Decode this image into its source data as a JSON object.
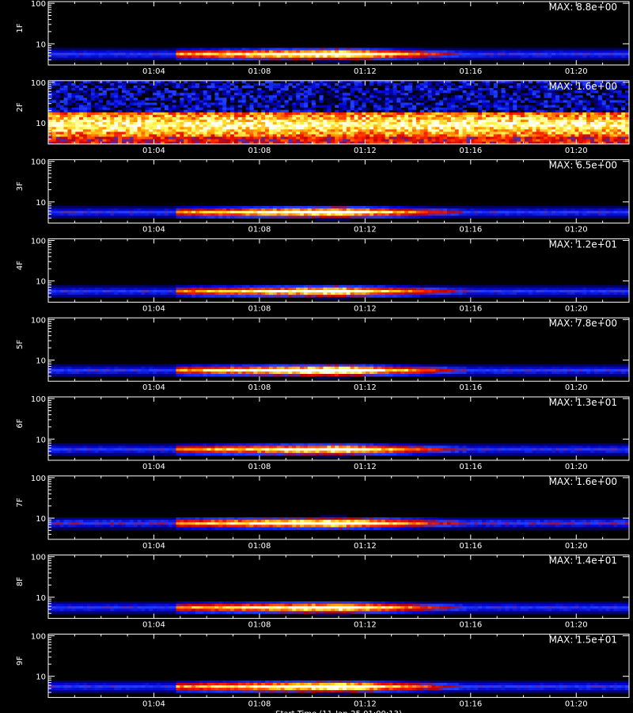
{
  "chart_data": {
    "type": "heatmap",
    "colormap": [
      "#000000",
      "#0000c8",
      "#2040ff",
      "#c00000",
      "#ff2000",
      "#ffa000",
      "#ffff60",
      "#ffffff"
    ],
    "x_ticks": [
      "01:04",
      "01:08",
      "01:12",
      "01:16",
      "01:20"
    ],
    "x_tick_minutes": [
      4,
      8,
      12,
      16,
      20
    ],
    "x_range_minutes": [
      0.0,
      22.0
    ],
    "y_ticks": [
      "100",
      "10"
    ],
    "y_tick_values": [
      100,
      10
    ],
    "y_range": [
      3,
      110
    ],
    "y_scale": "log",
    "x_axis_title": "Start Time (11-Jan-25 01:00:13)",
    "panels": [
      {
        "label": "1F",
        "max_text": "MAX: 8.8e+00",
        "max": 8.8,
        "background": 0.3,
        "event_peak": 1.0,
        "band_center": 5.5
      },
      {
        "label": "2F",
        "max_text": "MAX: 1.6e+00",
        "max": 1.6,
        "background": 1.05,
        "event_peak": 0.15,
        "band_center": 9.0
      },
      {
        "label": "3F",
        "max_text": "MAX: 6.5e+00",
        "max": 6.5,
        "background": 0.3,
        "event_peak": 0.95,
        "band_center": 5.5
      },
      {
        "label": "4F",
        "max_text": "MAX: 1.2e+01",
        "max": 12.0,
        "background": 0.3,
        "event_peak": 0.9,
        "band_center": 5.5
      },
      {
        "label": "5F",
        "max_text": "MAX: 7.8e+00",
        "max": 7.8,
        "background": 0.3,
        "event_peak": 1.05,
        "band_center": 5.5
      },
      {
        "label": "6F",
        "max_text": "MAX: 1.3e+01",
        "max": 13.0,
        "background": 0.3,
        "event_peak": 0.9,
        "band_center": 5.5
      },
      {
        "label": "7F",
        "max_text": "MAX: 1.6e+00",
        "max": 1.6,
        "background": 0.35,
        "event_peak": 0.9,
        "band_center": 7.5
      },
      {
        "label": "8F",
        "max_text": "MAX: 1.4e+01",
        "max": 14.0,
        "background": 0.3,
        "event_peak": 0.9,
        "band_center": 5.5
      },
      {
        "label": "9F",
        "max_text": "MAX: 1.5e+01",
        "max": 15.0,
        "background": 0.3,
        "event_peak": 1.0,
        "band_center": 5.5
      }
    ],
    "event": {
      "start_minutes": 4.8,
      "peak_minutes": 11.0,
      "end_minutes": 14.5
    }
  }
}
